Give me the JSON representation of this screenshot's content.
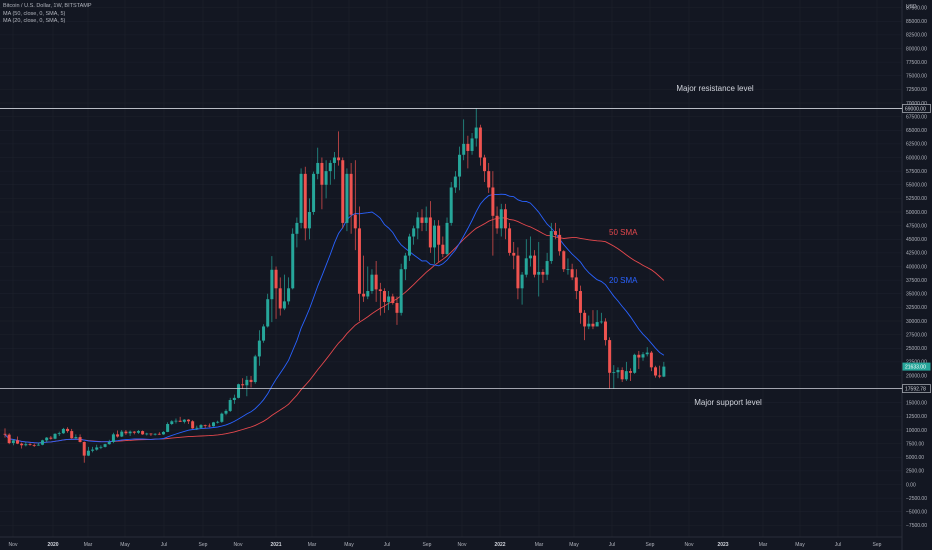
{
  "legend": {
    "symbol": "Bitcoin / U.S. Dollar, 1W, BITSTAMP",
    "ma1": "MA (50, close, 0, SMA, 5)",
    "ma2": "MA (20, close, 0, SMA, 5)"
  },
  "chart_data": {
    "type": "candlestick",
    "title": "Bitcoin / U.S. Dollar, 1W, BITSTAMP",
    "currency": "USD",
    "ylim": [
      -7500,
      87500
    ],
    "y_ticks": [
      "87500.00",
      "85000.00",
      "82500.00",
      "80000.00",
      "77500.00",
      "75000.00",
      "72500.00",
      "70000.00",
      "67500.00",
      "65000.00",
      "62500.00",
      "60000.00",
      "57500.00",
      "55000.00",
      "52500.00",
      "50000.00",
      "47500.00",
      "45000.00",
      "42500.00",
      "40000.00",
      "37500.00",
      "35000.00",
      "32500.00",
      "30000.00",
      "27500.00",
      "25000.00",
      "22500.00",
      "20000.00",
      "15000.00",
      "12500.00",
      "10000.00",
      "7500.00",
      "5000.00",
      "2500.00",
      "0.00",
      "−2500.00",
      "−5000.00",
      "−7500.00"
    ],
    "x_labels": [
      "Nov",
      "2020",
      "Mar",
      "May",
      "Jul",
      "Sep",
      "Nov",
      "2021",
      "Mar",
      "May",
      "Jul",
      "Sep",
      "Nov",
      "2022",
      "Mar",
      "May",
      "Jul",
      "Sep",
      "Nov",
      "2023",
      "Mar",
      "May",
      "Jul",
      "Sep"
    ],
    "price_tags": {
      "resistance": {
        "value": 69000,
        "label": "69000.00"
      },
      "support": {
        "value": 17592.78,
        "label": "17592.78"
      },
      "current": {
        "value": 21633,
        "label": "21633.00"
      }
    },
    "annotations": {
      "resistance": "Major resistance level",
      "support": "Major support level",
      "ma50": "50 SMA",
      "ma20": "20 SMA"
    },
    "colors": {
      "up": "#26a69a",
      "down": "#ef5350",
      "ma50": "#e5484d",
      "ma20": "#2962ff",
      "level": "#d1d4dc",
      "background": "#131722"
    },
    "candles": [
      {
        "o": 9300,
        "h": 10300,
        "l": 8600,
        "c": 9150
      },
      {
        "o": 9150,
        "h": 9400,
        "l": 7400,
        "c": 7600
      },
      {
        "o": 7600,
        "h": 8300,
        "l": 7200,
        "c": 8100
      },
      {
        "o": 8100,
        "h": 8800,
        "l": 7400,
        "c": 7500
      },
      {
        "o": 7500,
        "h": 7700,
        "l": 6600,
        "c": 7200
      },
      {
        "o": 7200,
        "h": 7800,
        "l": 7000,
        "c": 7400
      },
      {
        "o": 7400,
        "h": 7600,
        "l": 7100,
        "c": 7250
      },
      {
        "o": 7250,
        "h": 7500,
        "l": 6900,
        "c": 7200
      },
      {
        "o": 7200,
        "h": 7700,
        "l": 7100,
        "c": 7300
      },
      {
        "o": 7300,
        "h": 8200,
        "l": 7200,
        "c": 8100
      },
      {
        "o": 8100,
        "h": 8700,
        "l": 7800,
        "c": 8600
      },
      {
        "o": 8600,
        "h": 8900,
        "l": 8200,
        "c": 8400
      },
      {
        "o": 8400,
        "h": 9400,
        "l": 8300,
        "c": 9300
      },
      {
        "o": 9300,
        "h": 9700,
        "l": 8900,
        "c": 9400
      },
      {
        "o": 9400,
        "h": 10400,
        "l": 9300,
        "c": 10200
      },
      {
        "o": 10200,
        "h": 10500,
        "l": 9500,
        "c": 9800
      },
      {
        "o": 9800,
        "h": 10200,
        "l": 8400,
        "c": 8500
      },
      {
        "o": 8500,
        "h": 9200,
        "l": 8400,
        "c": 8700
      },
      {
        "o": 8700,
        "h": 9200,
        "l": 7700,
        "c": 7800
      },
      {
        "o": 7800,
        "h": 7900,
        "l": 4000,
        "c": 5300
      },
      {
        "o": 5300,
        "h": 6900,
        "l": 5200,
        "c": 6200
      },
      {
        "o": 6200,
        "h": 6900,
        "l": 5900,
        "c": 6400
      },
      {
        "o": 6400,
        "h": 7300,
        "l": 6200,
        "c": 6800
      },
      {
        "o": 6800,
        "h": 7200,
        "l": 6500,
        "c": 6900
      },
      {
        "o": 6900,
        "h": 7500,
        "l": 6800,
        "c": 7400
      },
      {
        "o": 7400,
        "h": 8200,
        "l": 7300,
        "c": 7800
      },
      {
        "o": 7800,
        "h": 9500,
        "l": 7600,
        "c": 9200
      },
      {
        "o": 9200,
        "h": 9900,
        "l": 8600,
        "c": 8800
      },
      {
        "o": 8800,
        "h": 10000,
        "l": 8700,
        "c": 9700
      },
      {
        "o": 9700,
        "h": 10000,
        "l": 9100,
        "c": 9400
      },
      {
        "o": 9400,
        "h": 9900,
        "l": 8900,
        "c": 9700
      },
      {
        "o": 9700,
        "h": 9800,
        "l": 9200,
        "c": 9500
      },
      {
        "o": 9500,
        "h": 10000,
        "l": 9300,
        "c": 9800
      },
      {
        "o": 9800,
        "h": 9900,
        "l": 9100,
        "c": 9200
      },
      {
        "o": 9200,
        "h": 9500,
        "l": 9000,
        "c": 9350
      },
      {
        "o": 9350,
        "h": 9400,
        "l": 8900,
        "c": 9200
      },
      {
        "o": 9200,
        "h": 9400,
        "l": 9000,
        "c": 9300
      },
      {
        "o": 9300,
        "h": 9600,
        "l": 9100,
        "c": 9200
      },
      {
        "o": 9200,
        "h": 9800,
        "l": 9100,
        "c": 9650
      },
      {
        "o": 9650,
        "h": 11400,
        "l": 9600,
        "c": 11100
      },
      {
        "o": 11100,
        "h": 11800,
        "l": 10900,
        "c": 11600
      },
      {
        "o": 11600,
        "h": 12100,
        "l": 11200,
        "c": 11700
      },
      {
        "o": 11700,
        "h": 12400,
        "l": 11500,
        "c": 11500
      },
      {
        "o": 11500,
        "h": 12000,
        "l": 11200,
        "c": 11900
      },
      {
        "o": 11900,
        "h": 12000,
        "l": 11100,
        "c": 11600
      },
      {
        "o": 11600,
        "h": 11800,
        "l": 10200,
        "c": 10300
      },
      {
        "o": 10300,
        "h": 10800,
        "l": 10000,
        "c": 10400
      },
      {
        "o": 10400,
        "h": 11100,
        "l": 10200,
        "c": 10900
      },
      {
        "o": 10900,
        "h": 11000,
        "l": 10300,
        "c": 10800
      },
      {
        "o": 10800,
        "h": 11200,
        "l": 10500,
        "c": 10700
      },
      {
        "o": 10700,
        "h": 11500,
        "l": 10600,
        "c": 11400
      },
      {
        "o": 11400,
        "h": 11700,
        "l": 11200,
        "c": 11500
      },
      {
        "o": 11500,
        "h": 13200,
        "l": 11300,
        "c": 13000
      },
      {
        "o": 13000,
        "h": 13800,
        "l": 12700,
        "c": 13500
      },
      {
        "o": 13500,
        "h": 15900,
        "l": 13300,
        "c": 15500
      },
      {
        "o": 15500,
        "h": 16500,
        "l": 14800,
        "c": 15900
      },
      {
        "o": 15900,
        "h": 18500,
        "l": 15800,
        "c": 18400
      },
      {
        "o": 18400,
        "h": 19500,
        "l": 17600,
        "c": 18200
      },
      {
        "o": 18200,
        "h": 19900,
        "l": 16200,
        "c": 19200
      },
      {
        "o": 19200,
        "h": 19900,
        "l": 17800,
        "c": 18800
      },
      {
        "o": 18800,
        "h": 23800,
        "l": 18500,
        "c": 23500
      },
      {
        "o": 23500,
        "h": 28300,
        "l": 21800,
        "c": 26400
      },
      {
        "o": 26400,
        "h": 29400,
        "l": 26000,
        "c": 29000
      },
      {
        "o": 29000,
        "h": 35000,
        "l": 28800,
        "c": 34000
      },
      {
        "o": 34000,
        "h": 41900,
        "l": 29800,
        "c": 39400
      },
      {
        "o": 39400,
        "h": 40000,
        "l": 30400,
        "c": 36000
      },
      {
        "o": 36000,
        "h": 38000,
        "l": 31000,
        "c": 32300
      },
      {
        "o": 32300,
        "h": 38500,
        "l": 32000,
        "c": 33600
      },
      {
        "o": 33600,
        "h": 38000,
        "l": 33000,
        "c": 36000
      },
      {
        "o": 36000,
        "h": 47000,
        "l": 35800,
        "c": 46000
      },
      {
        "o": 46000,
        "h": 49000,
        "l": 43500,
        "c": 48000
      },
      {
        "o": 48000,
        "h": 58000,
        "l": 47000,
        "c": 57000
      },
      {
        "o": 57000,
        "h": 58300,
        "l": 44800,
        "c": 47000
      },
      {
        "o": 47000,
        "h": 52500,
        "l": 45000,
        "c": 50000
      },
      {
        "o": 50000,
        "h": 57400,
        "l": 49500,
        "c": 57000
      },
      {
        "o": 57000,
        "h": 61800,
        "l": 56000,
        "c": 59000
      },
      {
        "o": 59000,
        "h": 60000,
        "l": 50500,
        "c": 55000
      },
      {
        "o": 55000,
        "h": 59500,
        "l": 52500,
        "c": 57500
      },
      {
        "o": 57500,
        "h": 59500,
        "l": 55000,
        "c": 59000
      },
      {
        "o": 59000,
        "h": 61000,
        "l": 56000,
        "c": 60000
      },
      {
        "o": 60000,
        "h": 64800,
        "l": 58500,
        "c": 59500
      },
      {
        "o": 59500,
        "h": 60000,
        "l": 47000,
        "c": 48000
      },
      {
        "o": 48000,
        "h": 58000,
        "l": 46500,
        "c": 57000
      },
      {
        "o": 57000,
        "h": 59000,
        "l": 46000,
        "c": 49500
      },
      {
        "o": 49500,
        "h": 59500,
        "l": 43000,
        "c": 47000
      },
      {
        "o": 47000,
        "h": 51000,
        "l": 30000,
        "c": 35000
      },
      {
        "o": 35000,
        "h": 42000,
        "l": 33500,
        "c": 34500
      },
      {
        "o": 34500,
        "h": 40000,
        "l": 34000,
        "c": 35500
      },
      {
        "o": 35500,
        "h": 39500,
        "l": 35000,
        "c": 38500
      },
      {
        "o": 38500,
        "h": 41000,
        "l": 33500,
        "c": 35800
      },
      {
        "o": 35800,
        "h": 37000,
        "l": 31000,
        "c": 35500
      },
      {
        "o": 35500,
        "h": 36000,
        "l": 31500,
        "c": 33500
      },
      {
        "o": 33500,
        "h": 35500,
        "l": 32000,
        "c": 34500
      },
      {
        "o": 34500,
        "h": 35000,
        "l": 33000,
        "c": 33300
      },
      {
        "o": 33300,
        "h": 34500,
        "l": 29300,
        "c": 31500
      },
      {
        "o": 31500,
        "h": 40500,
        "l": 31000,
        "c": 39500
      },
      {
        "o": 39500,
        "h": 42500,
        "l": 37500,
        "c": 42000
      },
      {
        "o": 42000,
        "h": 46000,
        "l": 41000,
        "c": 45500
      },
      {
        "o": 45500,
        "h": 47500,
        "l": 44000,
        "c": 47000
      },
      {
        "o": 47000,
        "h": 50000,
        "l": 45000,
        "c": 49000
      },
      {
        "o": 49000,
        "h": 50500,
        "l": 46500,
        "c": 48000
      },
      {
        "o": 48000,
        "h": 51000,
        "l": 46500,
        "c": 49000
      },
      {
        "o": 49000,
        "h": 52000,
        "l": 42500,
        "c": 43500
      },
      {
        "o": 43500,
        "h": 48500,
        "l": 40500,
        "c": 47500
      },
      {
        "o": 47500,
        "h": 48500,
        "l": 40800,
        "c": 44000
      },
      {
        "o": 44000,
        "h": 45500,
        "l": 41700,
        "c": 42300
      },
      {
        "o": 42300,
        "h": 49000,
        "l": 42000,
        "c": 48000
      },
      {
        "o": 48000,
        "h": 55500,
        "l": 47500,
        "c": 54500
      },
      {
        "o": 54500,
        "h": 57500,
        "l": 53500,
        "c": 56500
      },
      {
        "o": 56500,
        "h": 62000,
        "l": 54000,
        "c": 60500
      },
      {
        "o": 60500,
        "h": 67000,
        "l": 59500,
        "c": 62500
      },
      {
        "o": 62500,
        "h": 64000,
        "l": 58000,
        "c": 61200
      },
      {
        "o": 61200,
        "h": 64500,
        "l": 60500,
        "c": 63500
      },
      {
        "o": 63500,
        "h": 69000,
        "l": 62000,
        "c": 65500
      },
      {
        "o": 65500,
        "h": 66000,
        "l": 58500,
        "c": 60000
      },
      {
        "o": 60000,
        "h": 60500,
        "l": 55500,
        "c": 57500
      },
      {
        "o": 57500,
        "h": 59000,
        "l": 53500,
        "c": 54500
      },
      {
        "o": 54500,
        "h": 57500,
        "l": 42000,
        "c": 49300
      },
      {
        "o": 49300,
        "h": 51000,
        "l": 46000,
        "c": 47000
      },
      {
        "o": 47000,
        "h": 51500,
        "l": 45500,
        "c": 50500
      },
      {
        "o": 50500,
        "h": 51500,
        "l": 45000,
        "c": 47000
      },
      {
        "o": 47000,
        "h": 48000,
        "l": 42000,
        "c": 42500
      },
      {
        "o": 42500,
        "h": 44500,
        "l": 39500,
        "c": 42000
      },
      {
        "o": 42000,
        "h": 43500,
        "l": 34000,
        "c": 36000
      },
      {
        "o": 36000,
        "h": 39000,
        "l": 33000,
        "c": 38500
      },
      {
        "o": 38500,
        "h": 45000,
        "l": 38000,
        "c": 41500
      },
      {
        "o": 41500,
        "h": 45500,
        "l": 40000,
        "c": 42000
      },
      {
        "o": 42000,
        "h": 43000,
        "l": 38000,
        "c": 38500
      },
      {
        "o": 38500,
        "h": 44500,
        "l": 34500,
        "c": 39000
      },
      {
        "o": 39000,
        "h": 39500,
        "l": 37000,
        "c": 38500
      },
      {
        "o": 38500,
        "h": 42500,
        "l": 37500,
        "c": 41000
      },
      {
        "o": 41000,
        "h": 48000,
        "l": 40500,
        "c": 46500
      },
      {
        "o": 46500,
        "h": 48000,
        "l": 45000,
        "c": 45800
      },
      {
        "o": 45800,
        "h": 47000,
        "l": 42000,
        "c": 42800
      },
      {
        "o": 42800,
        "h": 43000,
        "l": 39000,
        "c": 39500
      },
      {
        "o": 39500,
        "h": 41500,
        "l": 38500,
        "c": 39500
      },
      {
        "o": 39500,
        "h": 40500,
        "l": 37500,
        "c": 38000
      },
      {
        "o": 38000,
        "h": 39500,
        "l": 34000,
        "c": 35500
      },
      {
        "o": 35500,
        "h": 36500,
        "l": 29500,
        "c": 31500
      },
      {
        "o": 31500,
        "h": 32000,
        "l": 26500,
        "c": 29000
      },
      {
        "o": 29000,
        "h": 31000,
        "l": 28500,
        "c": 29500
      },
      {
        "o": 29500,
        "h": 32000,
        "l": 28500,
        "c": 29000
      },
      {
        "o": 29000,
        "h": 32000,
        "l": 29000,
        "c": 29800
      },
      {
        "o": 29800,
        "h": 31500,
        "l": 29500,
        "c": 29900
      },
      {
        "o": 29900,
        "h": 30500,
        "l": 25500,
        "c": 26500
      },
      {
        "o": 26500,
        "h": 27000,
        "l": 17600,
        "c": 20500
      },
      {
        "o": 20500,
        "h": 21900,
        "l": 17600,
        "c": 20600
      },
      {
        "o": 20600,
        "h": 21500,
        "l": 19500,
        "c": 21000
      },
      {
        "o": 21000,
        "h": 21500,
        "l": 18800,
        "c": 19300
      },
      {
        "o": 19300,
        "h": 22500,
        "l": 19000,
        "c": 20800
      },
      {
        "o": 20800,
        "h": 21300,
        "l": 19000,
        "c": 20500
      },
      {
        "o": 20500,
        "h": 24000,
        "l": 20300,
        "c": 23800
      },
      {
        "o": 23800,
        "h": 24500,
        "l": 21200,
        "c": 23300
      },
      {
        "o": 23300,
        "h": 24300,
        "l": 22700,
        "c": 23900
      },
      {
        "o": 23900,
        "h": 25200,
        "l": 23500,
        "c": 24200
      },
      {
        "o": 24200,
        "h": 24500,
        "l": 20800,
        "c": 21500
      },
      {
        "o": 21500,
        "h": 21800,
        "l": 19600,
        "c": 20000
      },
      {
        "o": 20000,
        "h": 21800,
        "l": 19500,
        "c": 19800
      },
      {
        "o": 19800,
        "h": 22500,
        "l": 19700,
        "c": 21633
      }
    ]
  }
}
